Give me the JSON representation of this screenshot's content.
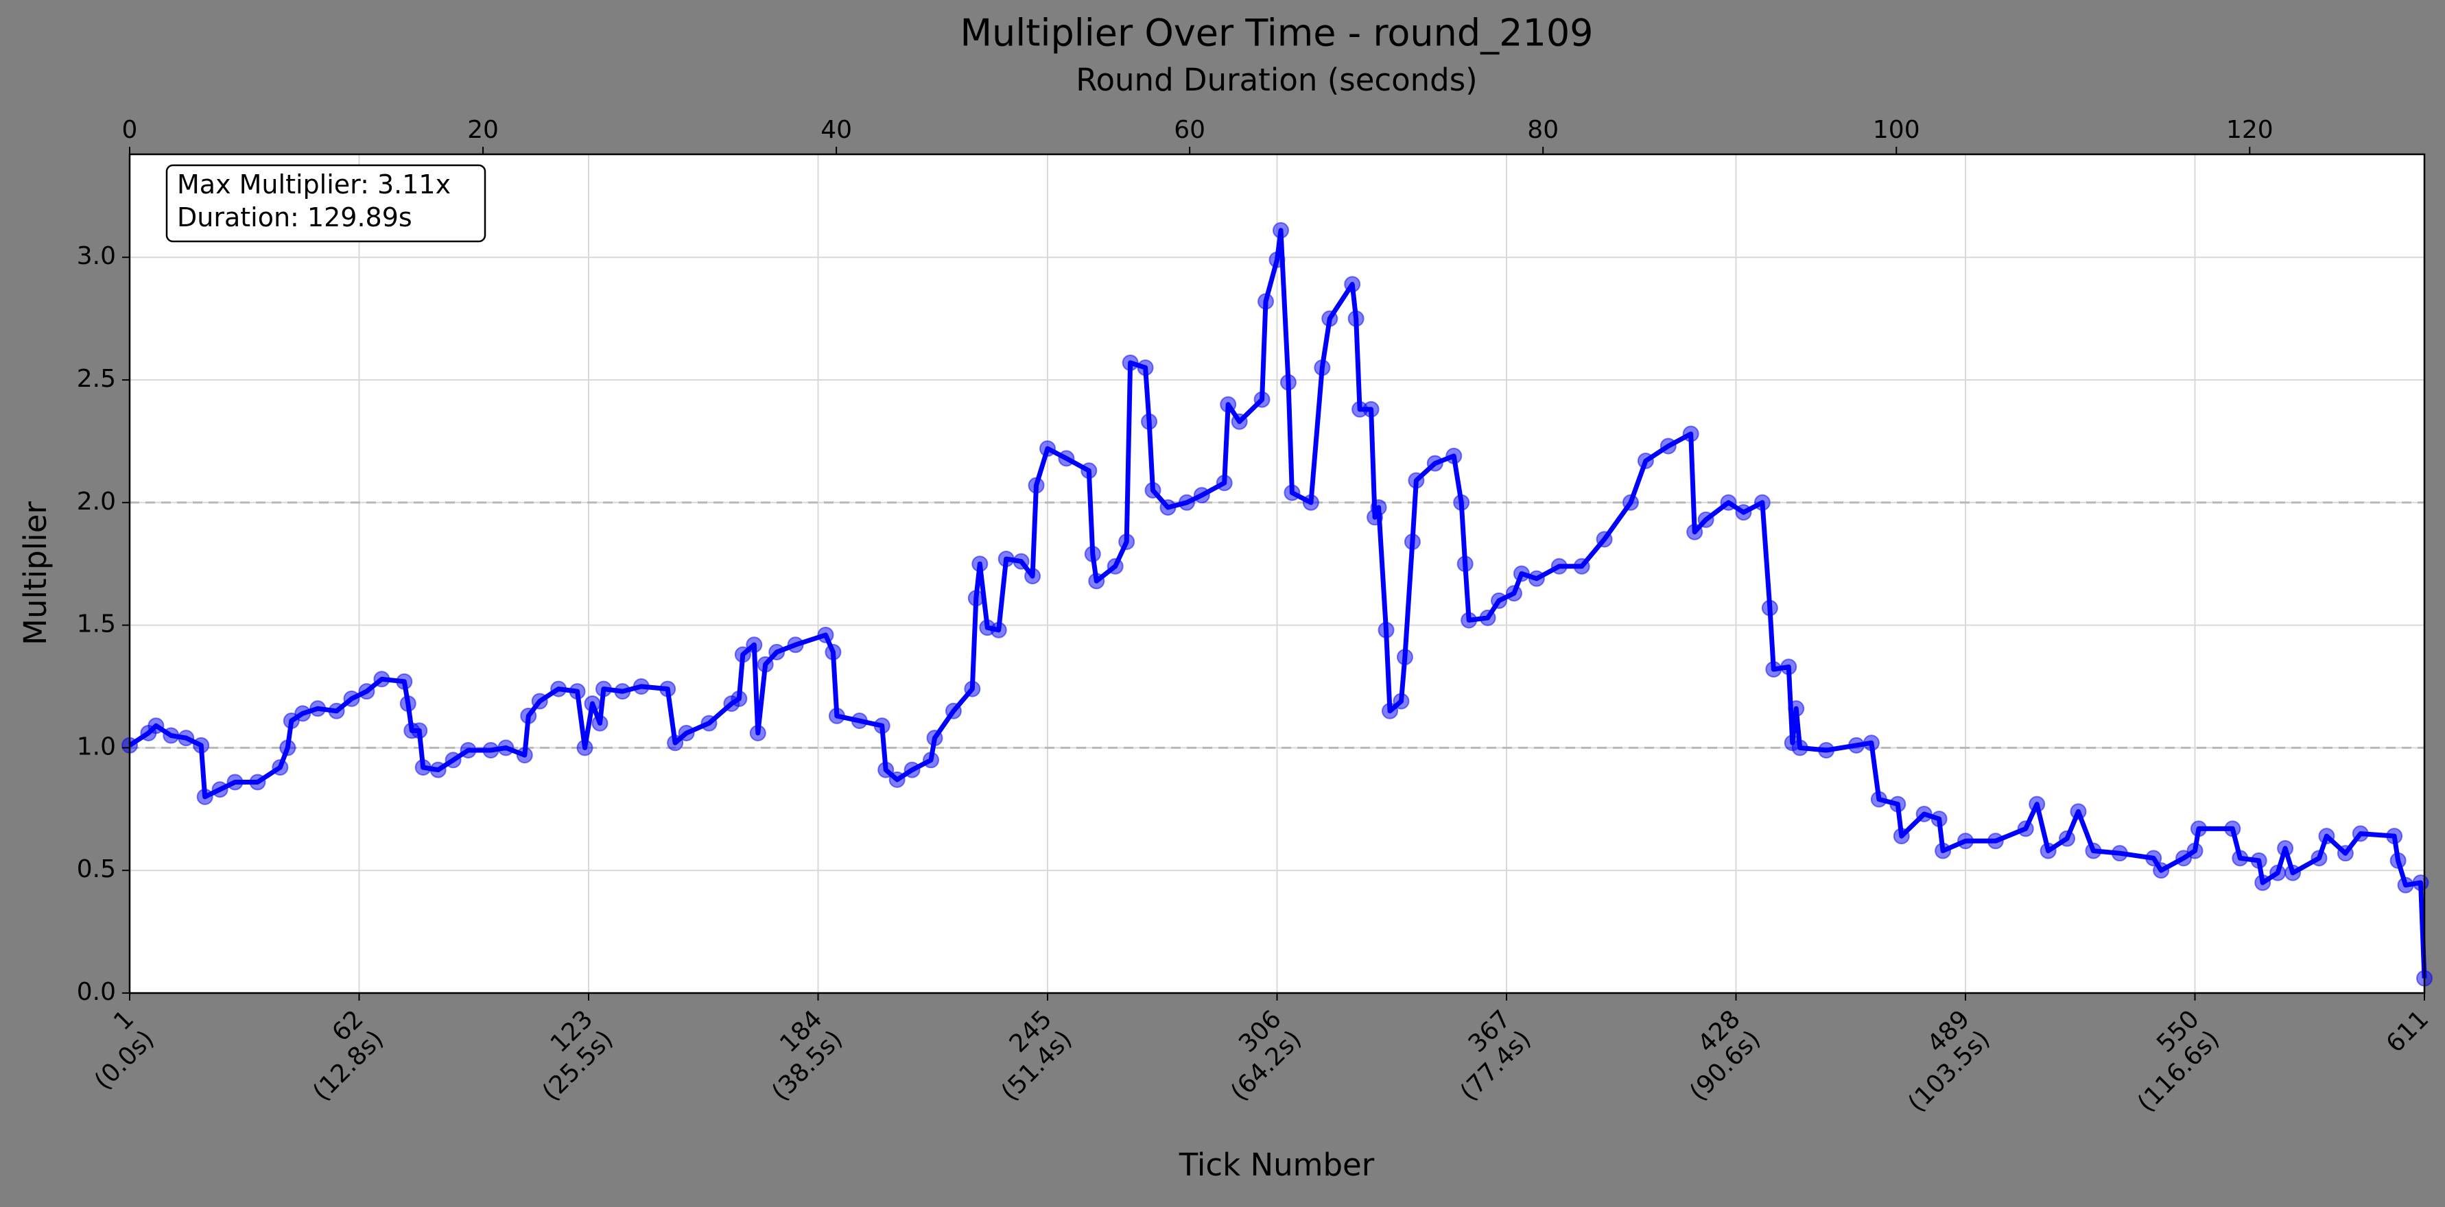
{
  "chart_data": {
    "type": "line",
    "title": "Multiplier Over Time - round_2109",
    "xlabel": "Tick Number",
    "ylabel": "Multiplier",
    "x2label": "Round Duration (seconds)",
    "annotation": [
      "Max Multiplier: 3.11x",
      "Duration: 129.89s"
    ],
    "color": "#0000ff",
    "grid": true,
    "hlines": [
      1.0,
      2.0
    ],
    "xlim": [
      1,
      611
    ],
    "xticks": [
      {
        "value": 1,
        "label": "1\n(0.0s)"
      },
      {
        "value": 62,
        "label": "62\n(12.8s)"
      },
      {
        "value": 123,
        "label": "123\n(25.5s)"
      },
      {
        "value": 184,
        "label": "184\n(38.5s)"
      },
      {
        "value": 245,
        "label": "245\n(51.4s)"
      },
      {
        "value": 306,
        "label": "306\n(64.2s)"
      },
      {
        "value": 367,
        "label": "367\n(77.4s)"
      },
      {
        "value": 428,
        "label": "428\n(90.6s)"
      },
      {
        "value": 489,
        "label": "489\n(103.5s)"
      },
      {
        "value": 550,
        "label": "550\n(116.6s)"
      },
      611
    ],
    "x2lim": [
      0,
      129.89
    ],
    "x2ticks": [
      0,
      20,
      40,
      60,
      80,
      100,
      120
    ],
    "ylim": [
      0,
      3.42
    ],
    "yticks": [
      {
        "value": 0,
        "label": "0.0"
      },
      {
        "value": 0.5,
        "label": "0.5"
      },
      {
        "value": 1,
        "label": "1.0"
      },
      {
        "value": 1.5,
        "label": "1.5"
      },
      {
        "value": 2,
        "label": "2.0"
      },
      {
        "value": 2.5,
        "label": "2.5"
      },
      {
        "value": 3,
        "label": "3.0"
      }
    ],
    "x": [
      1,
      6,
      8,
      12,
      16,
      20,
      21,
      25,
      29,
      35,
      41,
      43,
      44,
      47,
      51,
      56,
      60,
      64,
      68,
      74,
      75,
      76,
      78,
      79,
      83,
      87,
      91,
      97,
      101,
      106,
      107,
      110,
      115,
      120,
      122,
      124,
      126,
      127,
      132,
      137,
      144,
      146,
      149,
      155,
      161,
      163,
      164,
      167,
      168,
      170,
      173,
      178,
      186,
      188,
      189,
      195,
      201,
      202,
      205,
      209,
      214,
      215,
      220,
      225,
      226,
      227,
      229,
      232,
      234,
      238,
      241,
      242,
      245,
      250,
      256,
      257,
      258,
      263,
      266,
      267,
      271,
      272,
      273,
      277,
      282,
      286,
      292,
      293,
      296,
      302,
      303,
      306,
      307,
      309,
      310,
      315,
      318,
      320,
      326,
      327,
      328,
      331,
      332,
      333,
      335,
      336,
      339,
      340,
      342,
      343,
      348,
      353,
      355,
      356,
      357,
      362,
      365,
      369,
      371,
      375,
      381,
      387,
      393,
      400,
      404,
      410,
      416,
      417,
      420,
      426,
      430,
      435,
      437,
      438,
      442,
      443,
      444,
      445,
      452,
      460,
      464,
      466,
      471,
      472,
      478,
      482,
      483,
      489,
      497,
      505,
      508,
      511,
      516,
      519,
      523,
      530,
      539,
      541,
      547,
      550,
      551,
      560,
      562,
      567,
      568,
      572,
      574,
      576,
      583,
      585,
      590,
      594,
      603,
      604,
      606,
      610,
      611
    ],
    "values": [
      1.01,
      1.06,
      1.09,
      1.05,
      1.04,
      1.01,
      0.8,
      0.83,
      0.86,
      0.86,
      0.92,
      1.0,
      1.11,
      1.14,
      1.16,
      1.15,
      1.2,
      1.23,
      1.28,
      1.27,
      1.18,
      1.07,
      1.07,
      0.92,
      0.91,
      0.95,
      0.99,
      0.99,
      1.0,
      0.97,
      1.13,
      1.19,
      1.24,
      1.23,
      1.0,
      1.18,
      1.1,
      1.24,
      1.23,
      1.25,
      1.24,
      1.02,
      1.06,
      1.1,
      1.18,
      1.2,
      1.38,
      1.42,
      1.06,
      1.34,
      1.39,
      1.42,
      1.46,
      1.39,
      1.13,
      1.11,
      1.09,
      0.91,
      0.87,
      0.91,
      0.95,
      1.04,
      1.15,
      1.24,
      1.61,
      1.75,
      1.49,
      1.48,
      1.77,
      1.76,
      1.7,
      2.07,
      2.22,
      2.18,
      2.13,
      1.79,
      1.68,
      1.74,
      1.84,
      2.57,
      2.55,
      2.33,
      2.05,
      1.98,
      2.0,
      2.03,
      2.08,
      2.4,
      2.33,
      2.42,
      2.82,
      2.99,
      3.11,
      2.49,
      2.04,
      2.0,
      2.55,
      2.75,
      2.89,
      2.75,
      2.38,
      2.38,
      1.94,
      1.98,
      1.48,
      1.15,
      1.19,
      1.37,
      1.84,
      2.09,
      2.16,
      2.19,
      2.0,
      1.75,
      1.52,
      1.53,
      1.6,
      1.63,
      1.71,
      1.69,
      1.74,
      1.74,
      1.85,
      2.0,
      2.17,
      2.23,
      2.28,
      1.88,
      1.93,
      2.0,
      1.96,
      2.0,
      1.57,
      1.32,
      1.33,
      1.02,
      1.16,
      1.0,
      0.99,
      1.01,
      1.02,
      0.79,
      0.77,
      0.64,
      0.73,
      0.71,
      0.58,
      0.62,
      0.62,
      0.67,
      0.77,
      0.58,
      0.63,
      0.74,
      0.58,
      0.57,
      0.55,
      0.5,
      0.55,
      0.58,
      0.67,
      0.67,
      0.55,
      0.54,
      0.45,
      0.49,
      0.59,
      0.49,
      0.55,
      0.64,
      0.57,
      0.65,
      0.64,
      0.54,
      0.44,
      0.45,
      0.06
    ]
  }
}
